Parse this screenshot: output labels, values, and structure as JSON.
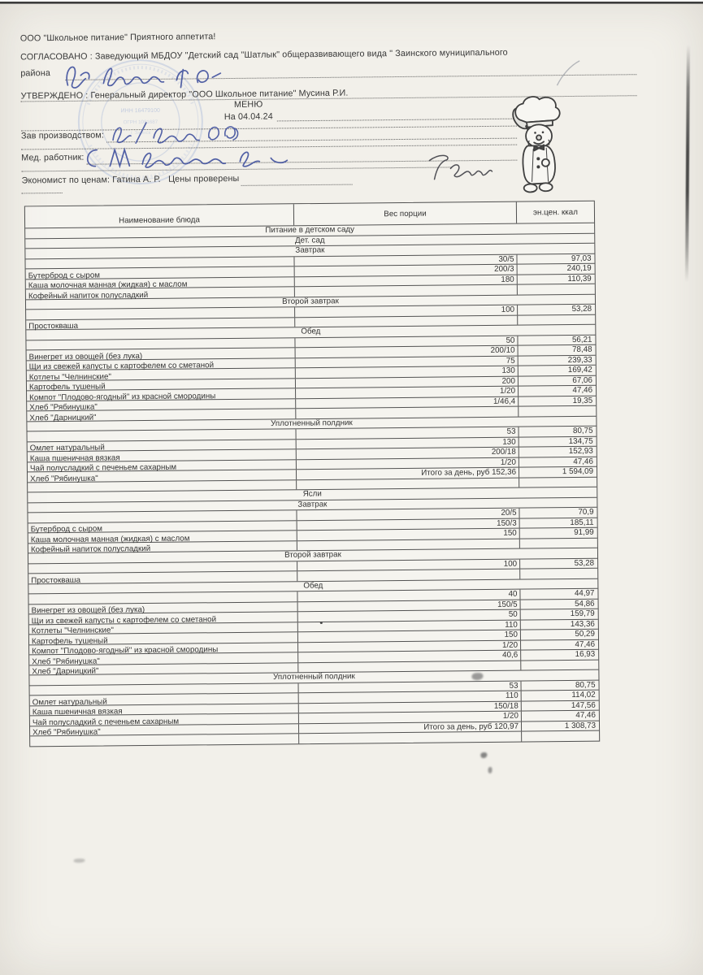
{
  "page": {
    "org_line": "ООО \"Школьное питание\" Приятного аппетита!",
    "agreed_line1": "СОГЛАСОВАНО : Заведующий МБДОУ \"Детский сад \"Шатлык\" общеразвивающего вида \" Заинского муниципального",
    "agreed_line2": "района",
    "approved_line": "УТВЕРЖДЕНО : Генеральный директор \"ООО Школьное питание\" Мусина Р.И.",
    "menu_title": "МЕНЮ",
    "menu_date": "На 04.04.24",
    "prod_label": "Зав производством:",
    "med_label": "Мед. работник:",
    "econ_label": "Экономист по ценам: Гатина А. Р.",
    "econ_note": "Цены проверены",
    "stamp_text": "ИНН 16479100"
  },
  "table": {
    "headers": [
      "Наименование блюда",
      "Вес порции",
      "эн.цен. ккал"
    ],
    "rows": [
      {
        "type": "section",
        "text": "Питание в детском саду"
      },
      {
        "type": "section",
        "text": "Дет. сад"
      },
      {
        "type": "section",
        "text": "Завтрак"
      },
      {
        "type": "item",
        "name": "",
        "weight": "30/5",
        "kcal": "97,03"
      },
      {
        "type": "item",
        "name": "Бутерброд с сыром",
        "weight": "200/3",
        "kcal": "240,19"
      },
      {
        "type": "item",
        "name": "Каша молочная манная (жидкая) с маслом",
        "weight": "180",
        "kcal": "110,39"
      },
      {
        "type": "item",
        "name": "Кофейный напиток полусладкий",
        "weight": "",
        "kcal": ""
      },
      {
        "type": "section",
        "text": "Второй завтрак"
      },
      {
        "type": "item",
        "name": "",
        "weight": "100",
        "kcal": "53,28"
      },
      {
        "type": "item",
        "name": "Простокваша",
        "weight": "",
        "kcal": ""
      },
      {
        "type": "section",
        "text": "Обед"
      },
      {
        "type": "item",
        "name": "",
        "weight": "50",
        "kcal": "56,21"
      },
      {
        "type": "item",
        "name": "Винегрет из овощей (без лука)",
        "weight": "200/10",
        "kcal": "78,48"
      },
      {
        "type": "item",
        "name": "Щи из свежей капусты с картофелем со сметаной",
        "weight": "75",
        "kcal": "239,33"
      },
      {
        "type": "item",
        "name": "Котлеты \"Челнинские\"",
        "weight": "130",
        "kcal": "169,42"
      },
      {
        "type": "item",
        "name": "Картофель тушеный",
        "weight": "200",
        "kcal": "67,06"
      },
      {
        "type": "item",
        "name": "Компот \"Плодово-ягодный\" из красной смородины",
        "weight": "1/20",
        "kcal": "47,46"
      },
      {
        "type": "item",
        "name": "Хлеб \"Рябинушка\"",
        "weight": "1/46,4",
        "kcal": "19,35"
      },
      {
        "type": "item",
        "name": "Хлеб \"Дарницкий\"",
        "weight": "",
        "kcal": ""
      },
      {
        "type": "section",
        "text": "Уплотненный полдник"
      },
      {
        "type": "item",
        "name": "",
        "weight": "53",
        "kcal": "80,75"
      },
      {
        "type": "item",
        "name": "Омлет натуральный",
        "weight": "130",
        "kcal": "134,75"
      },
      {
        "type": "item",
        "name": "Каша пшеничная вязкая",
        "weight": "200/18",
        "kcal": "152,93"
      },
      {
        "type": "item",
        "name": "Чай полусладкий с печеньем сахарным",
        "weight": "1/20",
        "kcal": "47,46"
      },
      {
        "type": "item",
        "name": "Хлеб \"Рябинушка\"",
        "weight": "Итого за день, руб 152,36",
        "kcal": "1 594,09"
      },
      {
        "type": "item",
        "name": "",
        "weight": "",
        "kcal": ""
      },
      {
        "type": "section",
        "text": "Ясли"
      },
      {
        "type": "section",
        "text": "Завтрак"
      },
      {
        "type": "item",
        "name": "",
        "weight": "20/5",
        "kcal": "70,9"
      },
      {
        "type": "item",
        "name": "Бутерброд с сыром",
        "weight": "150/3",
        "kcal": "185,11"
      },
      {
        "type": "item",
        "name": "Каша молочная манная (жидкая) с маслом",
        "weight": "150",
        "kcal": "91,99"
      },
      {
        "type": "item",
        "name": "Кофейный напиток полусладкий",
        "weight": "",
        "kcal": ""
      },
      {
        "type": "section",
        "text": "Второй завтрак"
      },
      {
        "type": "item",
        "name": "",
        "weight": "100",
        "kcal": "53,28"
      },
      {
        "type": "item",
        "name": "Простокваша",
        "weight": "",
        "kcal": ""
      },
      {
        "type": "section",
        "text": "Обед"
      },
      {
        "type": "item",
        "name": "",
        "weight": "40",
        "kcal": "44,97"
      },
      {
        "type": "item",
        "name": "Винегрет из овощей (без лука)",
        "weight": "150/5",
        "kcal": "54,86"
      },
      {
        "type": "item",
        "name": "Щи из свежей капусты с картофелем со сметаной",
        "weight": "50",
        "kcal": "159,79"
      },
      {
        "type": "item",
        "name": "Котлеты \"Челнинские\"",
        "weight": "110",
        "kcal": "143,36"
      },
      {
        "type": "item",
        "name": "Картофель тушеный",
        "weight": "150",
        "kcal": "50,29"
      },
      {
        "type": "item",
        "name": "Компот \"Плодово-ягодный\" из красной смородины",
        "weight": "1/20",
        "kcal": "47,46"
      },
      {
        "type": "item",
        "name": "Хлеб \"Рябинушка\"",
        "weight": "40,6",
        "kcal": "16,93"
      },
      {
        "type": "item",
        "name": "Хлеб \"Дарницкий\"",
        "weight": "",
        "kcal": ""
      },
      {
        "type": "section",
        "text": "Уплотненный полдник"
      },
      {
        "type": "item",
        "name": "",
        "weight": "53",
        "kcal": "80,75"
      },
      {
        "type": "item",
        "name": "Омлет натуральный",
        "weight": "110",
        "kcal": "114,02"
      },
      {
        "type": "item",
        "name": "Каша пшеничная вязкая",
        "weight": "150/18",
        "kcal": "147,56"
      },
      {
        "type": "item",
        "name": "Чай полусладкий с печеньем сахарным",
        "weight": "1/20",
        "kcal": "47,46"
      },
      {
        "type": "item",
        "name": "Хлеб \"Рябинушка\"",
        "weight": "Итого за день, руб 120,97",
        "kcal": "1 308,73"
      },
      {
        "type": "item",
        "name": "",
        "weight": "",
        "kcal": ""
      }
    ]
  },
  "icons": {
    "chef_mascot": "chef-mascot-icon",
    "round_stamp": "round-stamp-icon"
  },
  "colors": {
    "paper": "#f2f0ea",
    "table_line": "#525252",
    "ink_blue": "#44549f",
    "ink_dark": "#3f3f46",
    "stamp_blue": "#7d97cf"
  }
}
